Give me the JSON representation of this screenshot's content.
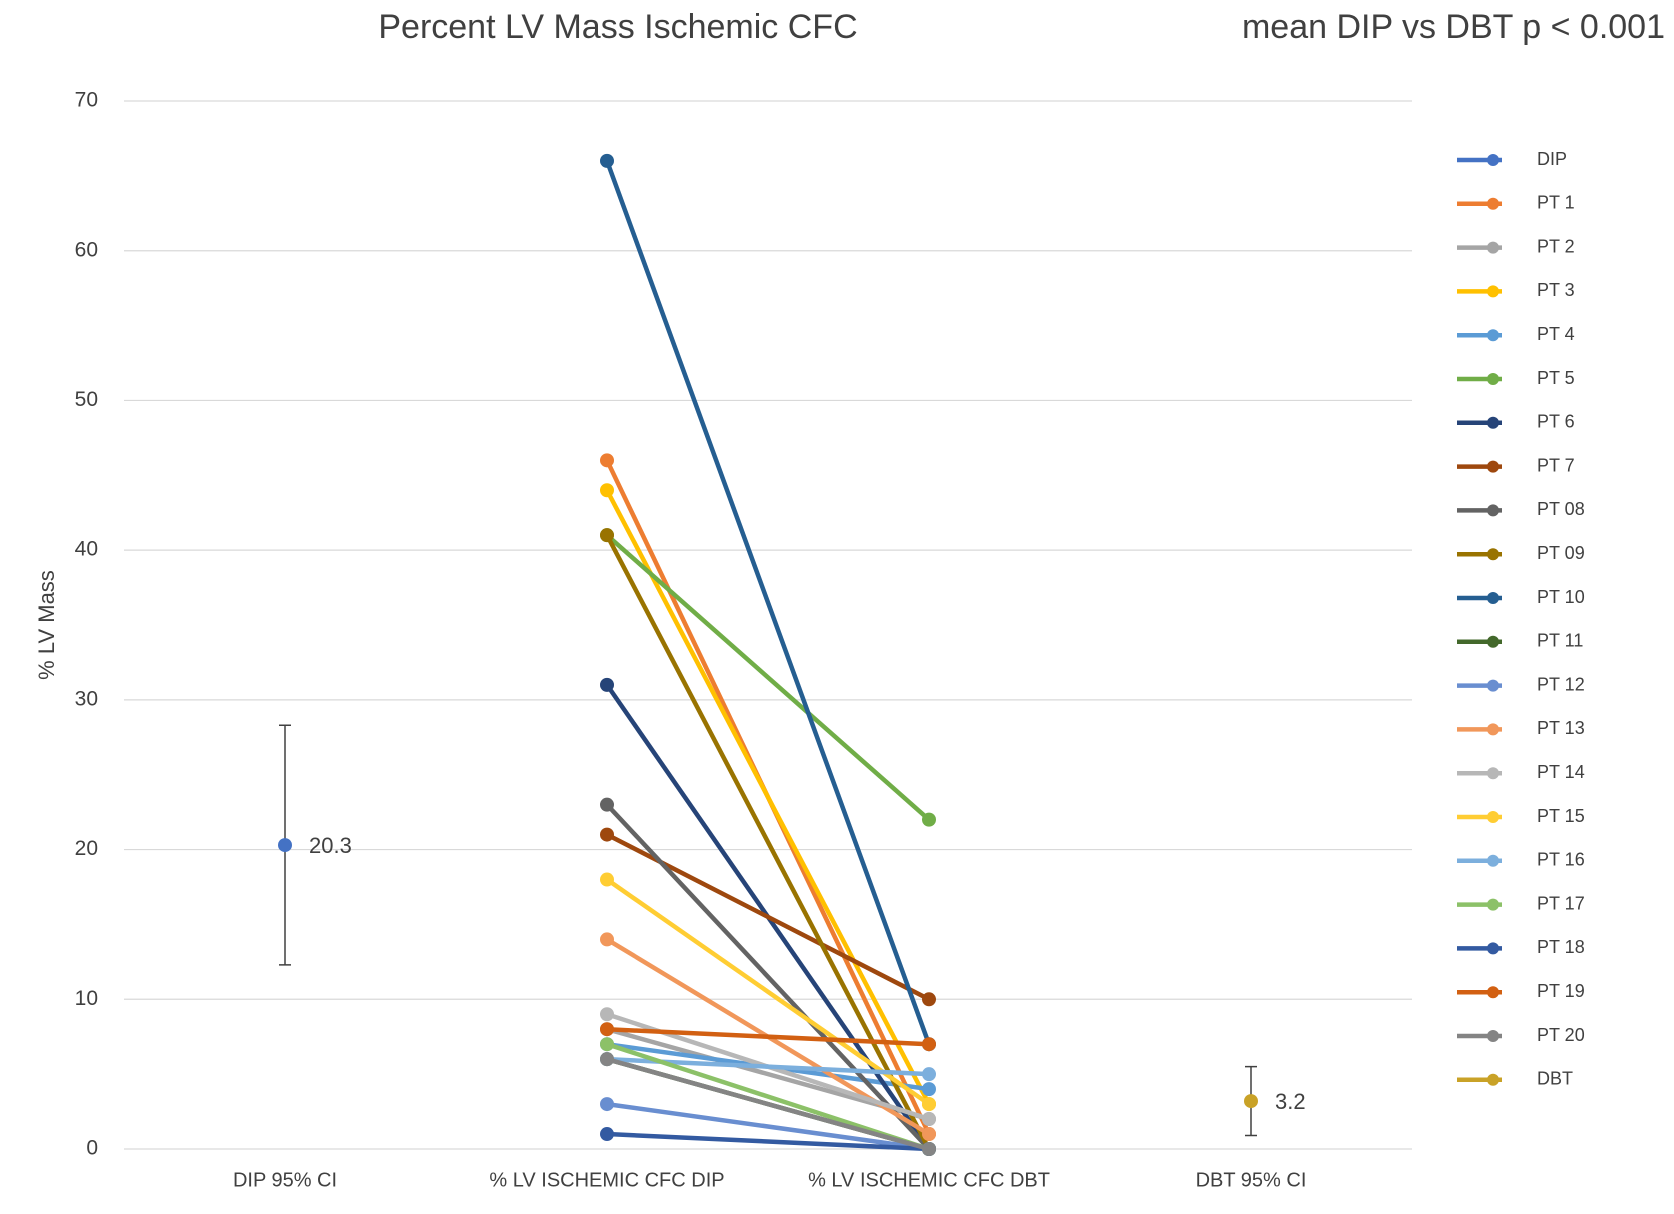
{
  "chart_data": {
    "type": "line",
    "title": "Percent LV Mass Ischemic CFC",
    "subtitle": "mean DIP vs DBT p < 0.001",
    "y_label": "% LV Mass",
    "categories": [
      "DIP 95% CI",
      "% LV ISCHEMIC CFC DIP",
      "% LV ISCHEMIC CFC DBT",
      "DBT 95% CI"
    ],
    "ylim": [
      0,
      70
    ],
    "yticks": [
      0,
      10,
      20,
      30,
      40,
      50,
      60,
      70
    ],
    "grid": true,
    "legend": "right",
    "series": [
      {
        "name": "DIP",
        "color": "#4472c4",
        "values": [
          20.3,
          null,
          null,
          null
        ],
        "errors": [
          8,
          null,
          null,
          null
        ],
        "data_labels": true
      },
      {
        "name": "PT 1",
        "color": "#ed7d31",
        "values": [
          null,
          46,
          1,
          null
        ]
      },
      {
        "name": "PT 2",
        "color": "#a5a5a5",
        "values": [
          null,
          8,
          2,
          null
        ]
      },
      {
        "name": "PT 3",
        "color": "#ffc000",
        "values": [
          null,
          44,
          3,
          null
        ]
      },
      {
        "name": "PT 4",
        "color": "#5b9bd5",
        "values": [
          null,
          7,
          4,
          null
        ]
      },
      {
        "name": "PT 5",
        "color": "#70ad47",
        "values": [
          null,
          41,
          22,
          null
        ]
      },
      {
        "name": "PT 6",
        "color": "#264478",
        "values": [
          null,
          31,
          0,
          null
        ]
      },
      {
        "name": "PT 7",
        "color": "#9e480e",
        "values": [
          null,
          21,
          10,
          null
        ]
      },
      {
        "name": "PT 08",
        "color": "#636363",
        "values": [
          null,
          23,
          0,
          null
        ]
      },
      {
        "name": "PT 09",
        "color": "#997300",
        "values": [
          null,
          41,
          0,
          null
        ]
      },
      {
        "name": "PT 10",
        "color": "#255e91",
        "values": [
          null,
          66,
          7,
          null
        ]
      },
      {
        "name": "PT 11",
        "color": "#43682b",
        "values": [
          null,
          6,
          0,
          null
        ]
      },
      {
        "name": "PT 12",
        "color": "#698ed0",
        "values": [
          null,
          3,
          0,
          null
        ]
      },
      {
        "name": "PT 13",
        "color": "#f1975a",
        "values": [
          null,
          14,
          1,
          null
        ]
      },
      {
        "name": "PT 14",
        "color": "#b7b7b7",
        "values": [
          null,
          9,
          2,
          null
        ]
      },
      {
        "name": "PT 15",
        "color": "#ffcd33",
        "values": [
          null,
          18,
          3,
          null
        ]
      },
      {
        "name": "PT 16",
        "color": "#7cafdd",
        "values": [
          null,
          6,
          5,
          null
        ]
      },
      {
        "name": "PT 17",
        "color": "#8cc168",
        "values": [
          null,
          7,
          0,
          null
        ]
      },
      {
        "name": "PT 18",
        "color": "#335aa1",
        "values": [
          null,
          1,
          0,
          null
        ]
      },
      {
        "name": "PT 19",
        "color": "#d26012",
        "values": [
          null,
          8,
          7,
          null
        ]
      },
      {
        "name": "PT 20",
        "color": "#848484",
        "values": [
          null,
          6,
          0,
          null
        ]
      },
      {
        "name": "DBT",
        "color": "#c9a227",
        "values": [
          null,
          null,
          null,
          3.2
        ],
        "errors": [
          null,
          null,
          null,
          2.3
        ],
        "data_labels": true
      }
    ]
  }
}
